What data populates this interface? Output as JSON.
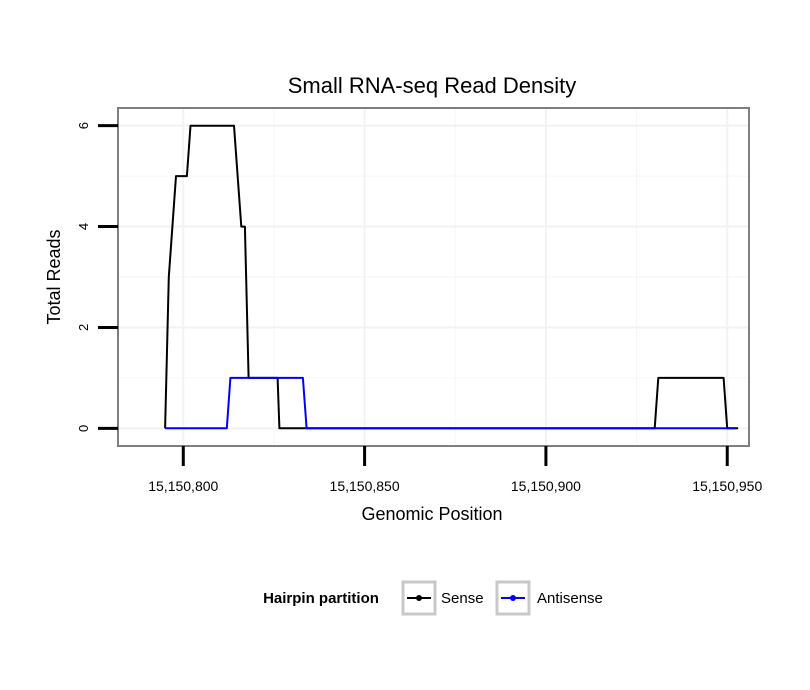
{
  "chart_data": {
    "type": "line",
    "title": "Small RNA-seq Read Density",
    "xlabel": "Genomic Position",
    "ylabel": "Total Reads",
    "xlim": [
      15150782,
      15150956
    ],
    "ylim": [
      -0.35,
      6.35
    ],
    "x_ticks": [
      15150800,
      15150850,
      15150900,
      15150950
    ],
    "x_tick_labels": [
      "15,150,800",
      "15,150,850",
      "15,150,900",
      "15,150,950"
    ],
    "y_ticks": [
      0,
      2,
      4,
      6
    ],
    "y_tick_labels": [
      "0",
      "2",
      "4",
      "6"
    ],
    "grid": true,
    "legend": {
      "title": "Hairpin partition",
      "position": "bottom",
      "entries": [
        {
          "label": "Sense",
          "color": "#000000"
        },
        {
          "label": "Antisense",
          "color": "#0000ff"
        }
      ]
    },
    "series": [
      {
        "name": "Sense",
        "color": "#000000",
        "x": [
          15150795,
          15150796,
          15150798,
          15150798.5,
          15150801,
          15150802,
          15150803,
          15150803.5,
          15150810,
          15150814,
          15150816,
          15150817,
          15150818,
          15150820,
          15150820.5,
          15150823,
          15150826,
          15150826.5,
          15150930,
          15150931,
          15150949,
          15150950,
          15150953
        ],
        "y": [
          0,
          3,
          5,
          5,
          5,
          6,
          6,
          6,
          6,
          6,
          4,
          4,
          1,
          1,
          1,
          1,
          1,
          0,
          0,
          1,
          1,
          0,
          0
        ]
      },
      {
        "name": "Antisense",
        "color": "#0000ff",
        "x": [
          15150795,
          15150812,
          15150813,
          15150826,
          15150827,
          15150833,
          15150834,
          15150930,
          15150952
        ],
        "y": [
          0,
          0,
          1,
          1,
          1,
          1,
          0,
          0,
          0
        ]
      }
    ]
  }
}
